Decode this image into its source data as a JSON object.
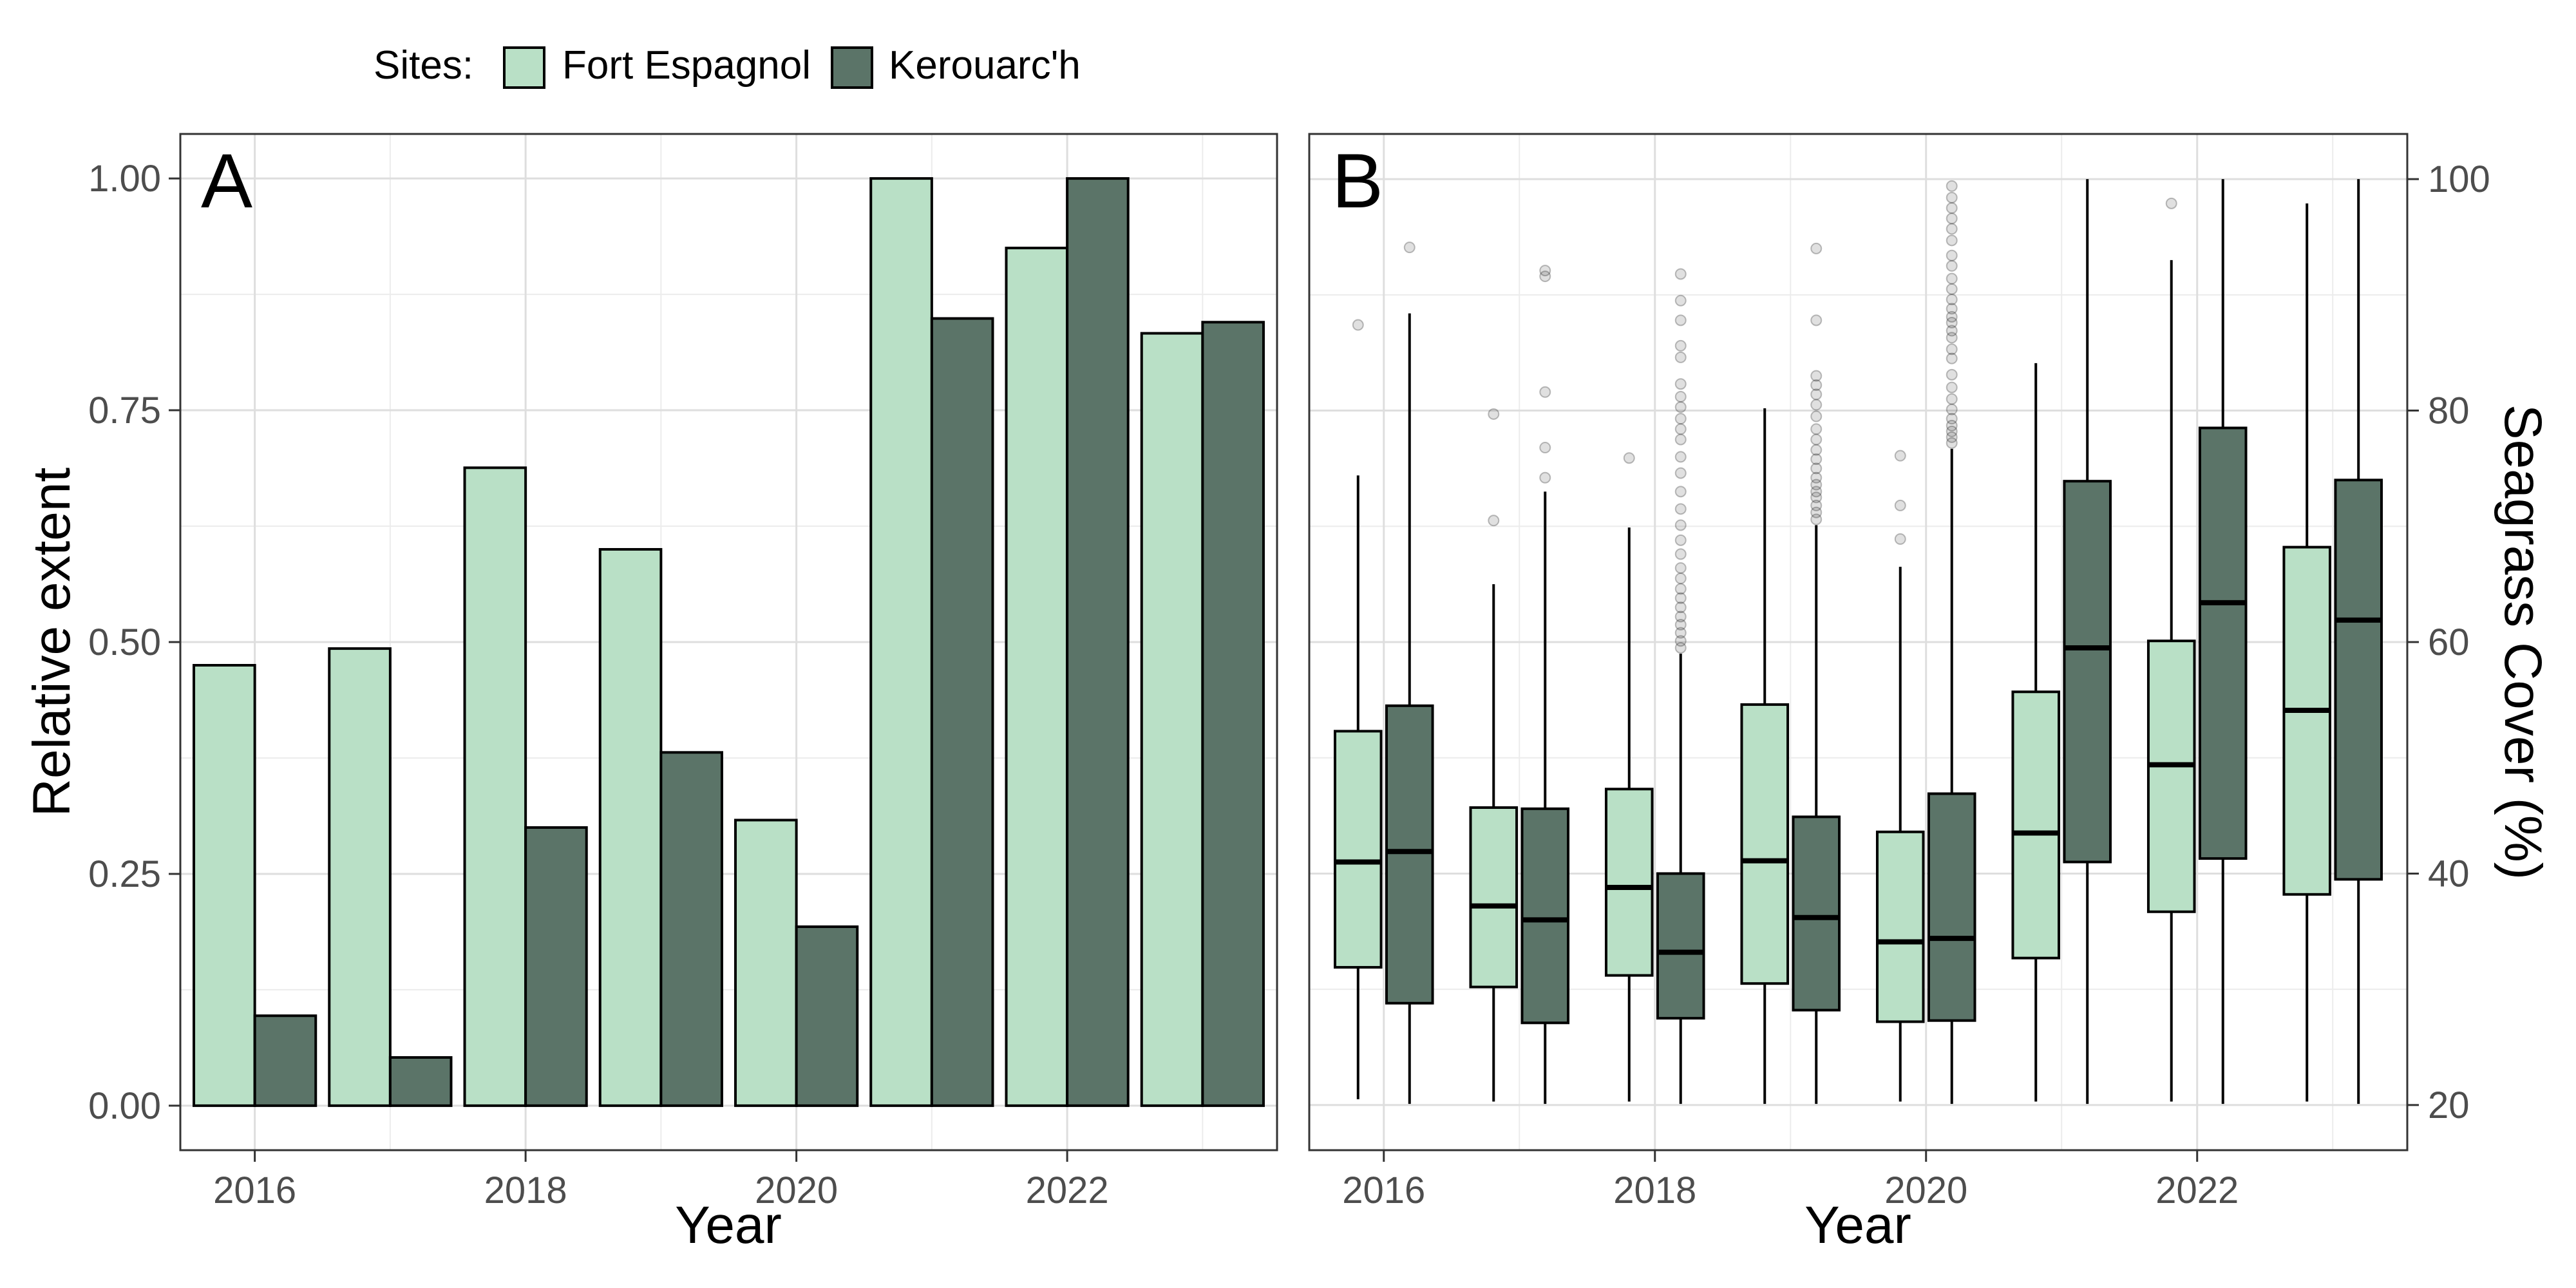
{
  "legend": {
    "title": "Sites:",
    "items": [
      {
        "label": "Fort Espagnol",
        "color": "#b9e0c6"
      },
      {
        "label": "Kerouarc'h",
        "color": "#5b7468"
      }
    ]
  },
  "chart_data": [
    {
      "type": "bar",
      "panel_label": "A",
      "xlabel": "Year",
      "ylabel": "Relative extent",
      "x_ticks": [
        "2016",
        "2018",
        "2020",
        "2022"
      ],
      "y_ticks": [
        "0.00",
        "0.25",
        "0.50",
        "0.75",
        "1.00"
      ],
      "xlim": [
        2015.45,
        2023.55
      ],
      "ylim": [
        -0.048,
        1.048
      ],
      "grid": true,
      "categories": [
        2016,
        2017,
        2018,
        2019,
        2020,
        2021,
        2022,
        2023
      ],
      "series": [
        {
          "name": "Fort Espagnol",
          "color": "#b9e0c6",
          "values": [
            0.475,
            0.493,
            0.688,
            0.6,
            0.308,
            1.0,
            0.925,
            0.833
          ]
        },
        {
          "name": "Kerouarc'h",
          "color": "#5b7468",
          "values": [
            0.097,
            0.052,
            0.3,
            0.381,
            0.193,
            0.849,
            1.0,
            0.845
          ]
        }
      ]
    },
    {
      "type": "box",
      "panel_label": "B",
      "xlabel": "Year",
      "ylabel": "Seagrass Cover (%)",
      "y_axis_side": "right",
      "x_ticks": [
        "2016",
        "2018",
        "2020",
        "2022"
      ],
      "y_ticks": [
        "20",
        "40",
        "60",
        "80",
        "100"
      ],
      "xlim": [
        2015.45,
        2023.55
      ],
      "ylim": [
        16.1,
        103.9
      ],
      "grid": true,
      "categories": [
        2016,
        2017,
        2018,
        2019,
        2020,
        2021,
        2022,
        2023
      ],
      "series": [
        {
          "name": "Fort Espagnol",
          "color": "#b9e0c6",
          "boxes": [
            {
              "min": 20.5,
              "q1": 31.9,
              "median": 41.0,
              "q3": 52.3,
              "max": 74.4,
              "outliers": [
                87.4
              ]
            },
            {
              "min": 20.3,
              "q1": 30.2,
              "median": 37.2,
              "q3": 45.7,
              "max": 65.0,
              "outliers": [
                70.5,
                79.7
              ]
            },
            {
              "min": 20.3,
              "q1": 31.2,
              "median": 38.8,
              "q3": 47.3,
              "max": 69.9,
              "outliers": [
                75.9
              ]
            },
            {
              "min": 20.1,
              "q1": 30.5,
              "median": 41.1,
              "q3": 54.6,
              "max": 80.2,
              "outliers": []
            },
            {
              "min": 20.3,
              "q1": 27.2,
              "median": 34.1,
              "q3": 43.6,
              "max": 66.5,
              "outliers": [
                68.9,
                71.8,
                76.1
              ]
            },
            {
              "min": 20.3,
              "q1": 32.7,
              "median": 43.5,
              "q3": 55.7,
              "max": 84.1,
              "outliers": []
            },
            {
              "min": 20.3,
              "q1": 36.7,
              "median": 49.4,
              "q3": 60.1,
              "max": 93.0,
              "outliers": [
                97.9
              ]
            },
            {
              "min": 20.3,
              "q1": 38.2,
              "median": 54.1,
              "q3": 68.2,
              "max": 97.9,
              "outliers": []
            }
          ]
        },
        {
          "name": "Kerouarc'h",
          "color": "#5b7468",
          "boxes": [
            {
              "min": 20.1,
              "q1": 28.8,
              "median": 41.9,
              "q3": 54.5,
              "max": 88.4,
              "outliers": [
                94.1
              ]
            },
            {
              "min": 20.1,
              "q1": 27.1,
              "median": 36.0,
              "q3": 45.6,
              "max": 73.0,
              "outliers": [
                81.6,
                91.6,
                92.1,
                76.8,
                74.2
              ]
            },
            {
              "min": 20.1,
              "q1": 27.5,
              "median": 33.2,
              "q3": 40.0,
              "max": 59.0,
              "outliers": [
                59.5,
                60.1,
                60.8,
                61.5,
                62.2,
                63.0,
                63.8,
                64.6,
                65.5,
                66.4,
                67.6,
                68.8,
                70.1,
                71.5,
                73.0,
                74.6,
                76.0,
                77.5,
                78.4,
                79.3,
                80.3,
                81.2,
                82.3,
                84.6,
                85.6,
                87.8,
                89.5,
                91.8
              ]
            },
            {
              "min": 20.1,
              "q1": 28.2,
              "median": 36.2,
              "q3": 44.9,
              "max": 70.1,
              "outliers": [
                70.6,
                71.2,
                71.8,
                72.5,
                73.0,
                73.6,
                74.2,
                75.0,
                75.8,
                76.6,
                77.5,
                78.4,
                79.5,
                80.5,
                81.4,
                82.2,
                83.0,
                87.8,
                94.0
              ]
            },
            {
              "min": 20.1,
              "q1": 27.3,
              "median": 34.4,
              "q3": 46.9,
              "max": 76.7,
              "outliers": [
                77.2,
                77.7,
                78.2,
                78.7,
                79.3,
                80.1,
                81.0,
                82.0,
                83.1,
                84.5,
                85.3,
                86.3,
                86.9,
                87.6,
                88.1,
                88.8,
                89.6,
                90.5,
                91.4,
                92.5,
                93.4,
                94.7,
                95.7,
                96.6,
                97.5,
                98.4,
                99.4
              ]
            },
            {
              "min": 20.1,
              "q1": 41.0,
              "median": 59.5,
              "q3": 73.9,
              "max": 100.0,
              "outliers": []
            },
            {
              "min": 20.1,
              "q1": 41.3,
              "median": 63.4,
              "q3": 78.5,
              "max": 100.0,
              "outliers": []
            },
            {
              "min": 20.1,
              "q1": 39.5,
              "median": 61.9,
              "q3": 74.0,
              "max": 100.0,
              "outliers": []
            }
          ]
        }
      ]
    }
  ]
}
